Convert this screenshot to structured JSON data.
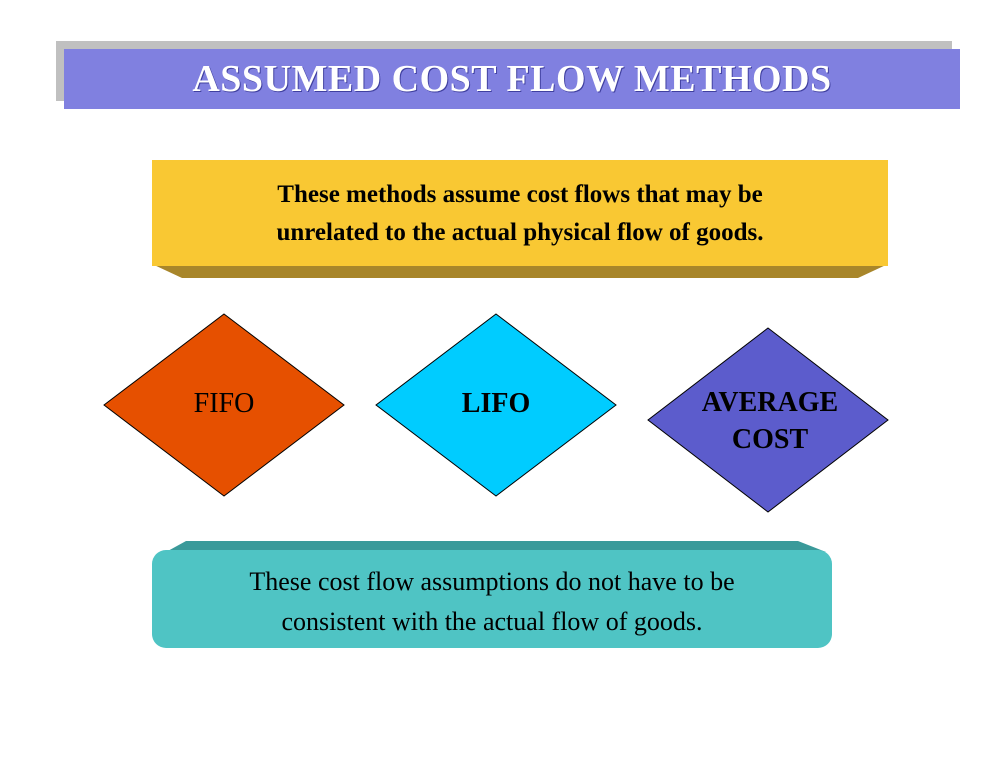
{
  "title": "ASSUMED COST FLOW METHODS",
  "top_box": {
    "line1": "These methods assume cost flows that may be",
    "line2": "unrelated to the actual physical flow of goods."
  },
  "methods": [
    {
      "label": "FIFO",
      "color": "#e65000"
    },
    {
      "label": "LIFO",
      "color": "#00ccff"
    },
    {
      "label_line1": "AVERAGE",
      "label_line2": "COST",
      "color": "#5c5ccc"
    }
  ],
  "bottom_box": {
    "line1": "These cost flow assumptions do not have to be",
    "line2": "consistent with the actual flow of goods."
  },
  "colors": {
    "title_bar": "#8080e0",
    "title_shadow": "#c0c0c0",
    "top_box": "#f9c833",
    "bottom_box": "#4fc4c4"
  }
}
